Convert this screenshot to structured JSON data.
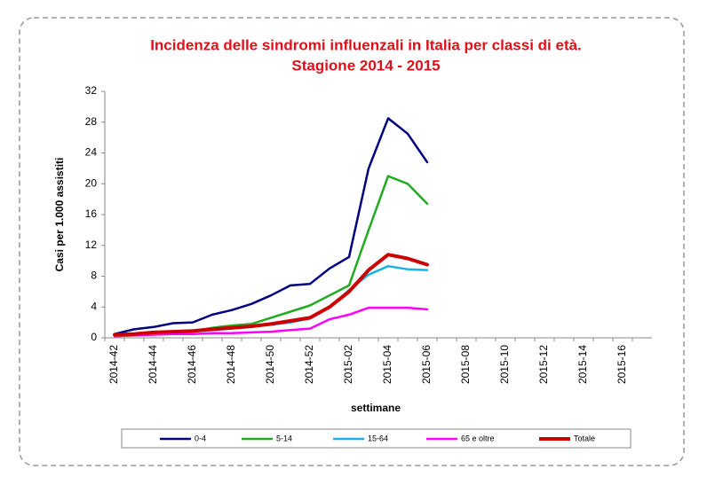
{
  "chart_data": {
    "type": "line",
    "title": "Incidenza delle sindromi influenzali in Italia per classi di età.",
    "subtitle": "Stagione 2014 - 2015",
    "x_label": "settimane",
    "y_label": "Casi per 1.000 assistiti",
    "categories": [
      "2014-42",
      null,
      "2014-44",
      null,
      "2014-46",
      null,
      "2014-48",
      null,
      "2014-50",
      null,
      "2014-52",
      null,
      "2015-02",
      null,
      "2015-04",
      null,
      "2015-06",
      null,
      "2015-08",
      null,
      "2015-10",
      null,
      "2015-12",
      null,
      "2015-14",
      null,
      "2015-16",
      null
    ],
    "series": [
      {
        "name": "0-4",
        "color": "#000080",
        "values": [
          0.5,
          1.1,
          1.4,
          1.9,
          2.0,
          3.0,
          3.6,
          4.4,
          5.5,
          6.8,
          7.0,
          9.0,
          10.5,
          22,
          28.5,
          26.5,
          22.8,
          null,
          null,
          null,
          null,
          null,
          null,
          null,
          null,
          null,
          null,
          null
        ]
      },
      {
        "name": "5-14",
        "color": "#22aa22",
        "values": [
          0.3,
          0.5,
          0.7,
          0.8,
          0.9,
          1.3,
          1.6,
          1.8,
          2.6,
          3.4,
          4.2,
          5.5,
          6.8,
          14,
          21,
          20,
          17.4,
          null,
          null,
          null,
          null,
          null,
          null,
          null,
          null,
          null,
          null,
          null
        ]
      },
      {
        "name": "15-64",
        "color": "#1ab0e8",
        "values": [
          0.3,
          0.4,
          0.6,
          0.7,
          0.8,
          1.0,
          1.2,
          1.4,
          1.7,
          2.0,
          2.5,
          4.0,
          6.2,
          8.2,
          9.3,
          8.9,
          8.8,
          null,
          null,
          null,
          null,
          null,
          null,
          null,
          null,
          null,
          null,
          null
        ]
      },
      {
        "name": "65 e oltre",
        "color": "#ff00ff",
        "values": [
          0.2,
          0.3,
          0.4,
          0.5,
          0.5,
          0.6,
          0.6,
          0.7,
          0.8,
          1.0,
          1.2,
          2.4,
          3.0,
          3.9,
          3.9,
          3.9,
          3.7,
          null,
          null,
          null,
          null,
          null,
          null,
          null,
          null,
          null,
          null,
          null
        ]
      },
      {
        "name": "Totale",
        "color": "#cc0000",
        "values": [
          0.4,
          0.5,
          0.7,
          0.8,
          0.9,
          1.1,
          1.3,
          1.5,
          1.8,
          2.2,
          2.6,
          4.0,
          6.0,
          8.8,
          10.8,
          10.3,
          9.5,
          null,
          null,
          null,
          null,
          null,
          null,
          null,
          null,
          null,
          null,
          null
        ]
      }
    ],
    "ylim": [
      0,
      32
    ],
    "yticks": [
      0,
      4,
      8,
      12,
      16,
      20,
      24,
      28,
      32
    ],
    "grid": false
  }
}
